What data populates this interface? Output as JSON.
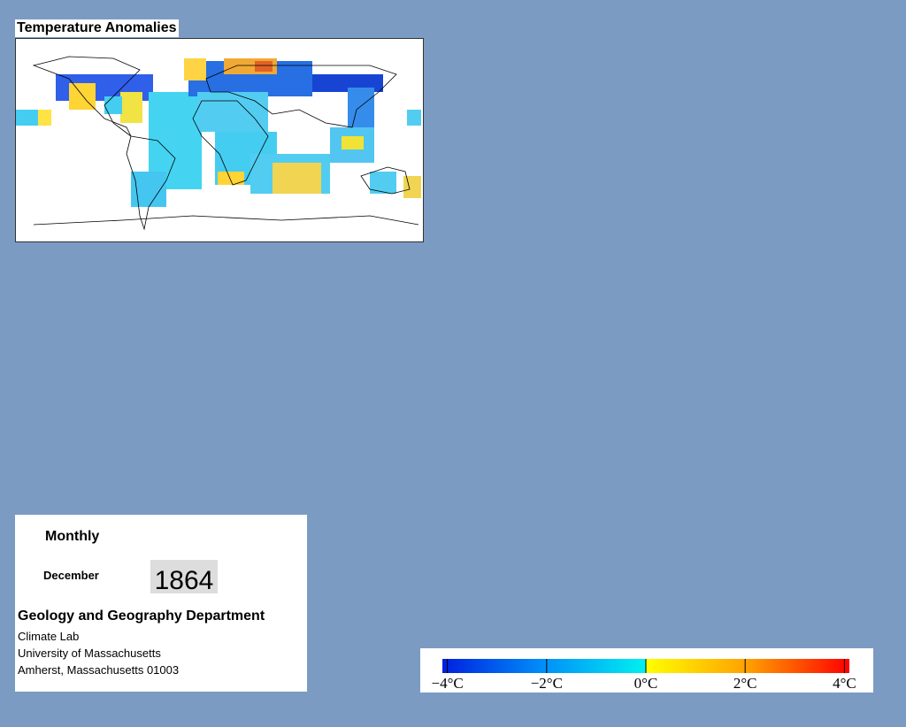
{
  "title": "Temperature Anomalies",
  "panel": {
    "frequency": "Monthly",
    "month": "December",
    "year": "1864",
    "department": "Geology and Geography Department",
    "address": [
      "Climate Lab",
      "University of Massachusetts",
      "Amherst, Massachusetts 01003"
    ]
  },
  "colorbar": {
    "range": [
      -4.1,
      4.1
    ],
    "ticks": [
      {
        "value": -4,
        "label": "−4°C"
      },
      {
        "value": -2,
        "label": "−2°C"
      },
      {
        "value": 0,
        "label": "0°C"
      },
      {
        "value": 2,
        "label": "2°C"
      },
      {
        "value": 4,
        "label": "4°C"
      }
    ]
  }
}
